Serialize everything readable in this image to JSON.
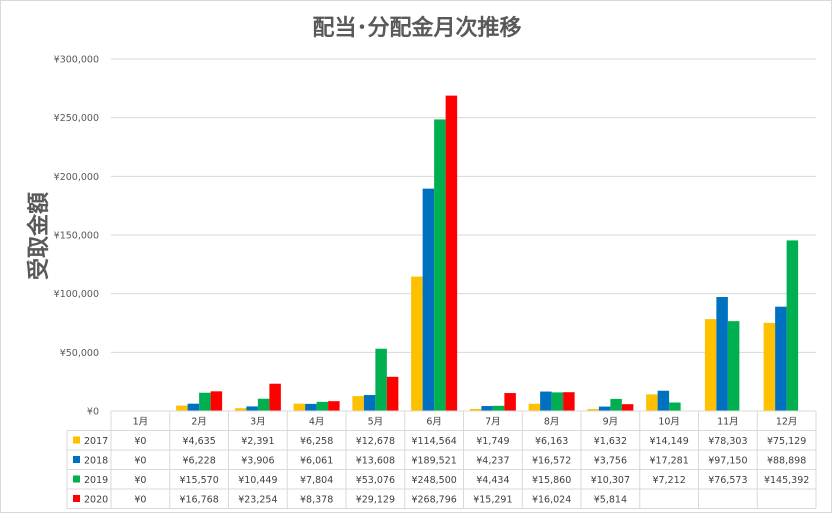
{
  "chart_data": {
    "type": "bar",
    "title": "配当･分配金月次推移",
    "ylabel": "受取金額",
    "xlabel": "",
    "ylim": [
      0,
      300000
    ],
    "yticks": [
      "¥0",
      "¥50,000",
      "¥100,000",
      "¥150,000",
      "¥200,000",
      "¥250,000",
      "¥300,000"
    ],
    "ytick_values": [
      0,
      50000,
      100000,
      150000,
      200000,
      250000,
      300000
    ],
    "categories": [
      "1月",
      "2月",
      "3月",
      "4月",
      "5月",
      "6月",
      "7月",
      "8月",
      "9月",
      "10月",
      "11月",
      "12月"
    ],
    "series": [
      {
        "name": "2017",
        "color": "#FFC000",
        "values": [
          0,
          4635,
          2391,
          6258,
          12678,
          114564,
          1749,
          6163,
          1632,
          14149,
          78303,
          75129
        ],
        "labels": [
          "¥0",
          "¥4,635",
          "¥2,391",
          "¥6,258",
          "¥12,678",
          "¥114,564",
          "¥1,749",
          "¥6,163",
          "¥1,632",
          "¥14,149",
          "¥78,303",
          "¥75,129"
        ]
      },
      {
        "name": "2018",
        "color": "#0070C0",
        "values": [
          0,
          6228,
          3906,
          6061,
          13608,
          189521,
          4237,
          16572,
          3756,
          17281,
          97150,
          88898
        ],
        "labels": [
          "¥0",
          "¥6,228",
          "¥3,906",
          "¥6,061",
          "¥13,608",
          "¥189,521",
          "¥4,237",
          "¥16,572",
          "¥3,756",
          "¥17,281",
          "¥97,150",
          "¥88,898"
        ]
      },
      {
        "name": "2019",
        "color": "#00B050",
        "values": [
          0,
          15570,
          10449,
          7804,
          53076,
          248500,
          4434,
          15860,
          10307,
          7212,
          76573,
          145392
        ],
        "labels": [
          "¥0",
          "¥15,570",
          "¥10,449",
          "¥7,804",
          "¥53,076",
          "¥248,500",
          "¥4,434",
          "¥15,860",
          "¥10,307",
          "¥7,212",
          "¥76,573",
          "¥145,392"
        ]
      },
      {
        "name": "2020",
        "color": "#FF0000",
        "values": [
          0,
          16768,
          23254,
          8378,
          29129,
          268796,
          15291,
          16024,
          5814,
          null,
          null,
          null
        ],
        "labels": [
          "¥0",
          "¥16,768",
          "¥23,254",
          "¥8,378",
          "¥29,129",
          "¥268,796",
          "¥15,291",
          "¥16,024",
          "¥5,814",
          "",
          "",
          ""
        ]
      }
    ],
    "grid": true,
    "legend": "data-table-left"
  }
}
